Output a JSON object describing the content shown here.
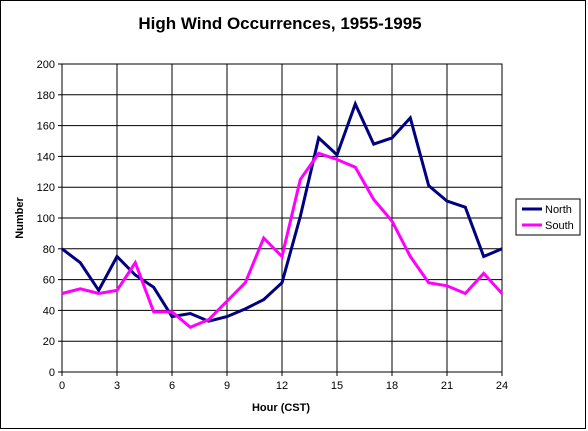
{
  "chart_data": {
    "type": "line",
    "title": "High Wind Occurrences, 1955-1995",
    "xlabel": "Hour (CST)",
    "ylabel": "Number",
    "xlim": [
      0,
      24
    ],
    "ylim": [
      0,
      200
    ],
    "xticks": [
      0,
      3,
      6,
      9,
      12,
      15,
      18,
      21,
      24
    ],
    "yticks": [
      0,
      20,
      40,
      60,
      80,
      100,
      120,
      140,
      160,
      180,
      200
    ],
    "grid": true,
    "legend_position": "right",
    "x": [
      0,
      1,
      2,
      3,
      4,
      5,
      6,
      7,
      8,
      9,
      10,
      11,
      12,
      13,
      14,
      15,
      16,
      17,
      18,
      19,
      20,
      21,
      22,
      23,
      24
    ],
    "series": [
      {
        "name": "North",
        "color": "#000080",
        "values": [
          80,
          71,
          53,
          75,
          63,
          55,
          36,
          38,
          33,
          36,
          41,
          47,
          58,
          101,
          152,
          141,
          174,
          148,
          152,
          165,
          121,
          111,
          107,
          75,
          80
        ]
      },
      {
        "name": "South",
        "color": "#ff00ff",
        "values": [
          51,
          54,
          51,
          53,
          71,
          39,
          39,
          29,
          34,
          46,
          58,
          87,
          75,
          125,
          142,
          138,
          133,
          112,
          98,
          75,
          58,
          56,
          51,
          64,
          51
        ]
      }
    ]
  }
}
